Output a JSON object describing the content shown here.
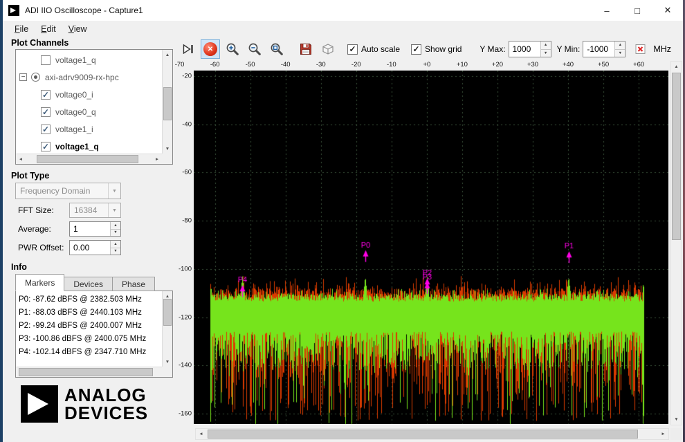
{
  "window": {
    "title": "ADI IIO Oscilloscope - Capture1",
    "buttons": {
      "minimize": "–",
      "maximize": "□",
      "close": "✕"
    }
  },
  "menu": {
    "items": [
      "File",
      "Edit",
      "View"
    ]
  },
  "icons": {
    "check": "✓",
    "dropdown_arrow": "▼",
    "spin_up": "▲",
    "spin_down": "▼",
    "scroll_up": "▲",
    "scroll_down": "▼",
    "scroll_left": "◄",
    "scroll_right": "►",
    "expander_collapse": "−",
    "stop_x": "✕"
  },
  "sidebar": {
    "plot_channels_label": "Plot Channels",
    "tree": [
      {
        "label": "voltage1_q",
        "checked": false
      },
      {
        "label": "axi-adrv9009-rx-hpc",
        "device": true
      },
      {
        "label": "voltage0_i",
        "checked": true
      },
      {
        "label": "voltage0_q",
        "checked": true
      },
      {
        "label": "voltage1_i",
        "checked": true
      },
      {
        "label": "voltage1_q",
        "checked": true,
        "emphasis": true
      }
    ],
    "plot_type_label": "Plot Type",
    "plot_type_value": "Frequency Domain",
    "fft_size_label": "FFT Size:",
    "fft_size_value": "16384",
    "average_label": "Average:",
    "average_value": "1",
    "pwr_offset_label": "PWR Offset:",
    "pwr_offset_value": "0.00",
    "info_label": "Info",
    "tabs": [
      "Markers",
      "Devices",
      "Phase"
    ],
    "marker_readouts": [
      "P0: -87.62 dBFS @ 2382.503 MHz",
      "P1: -88.03 dBFS @ 2440.103 MHz",
      "P2: -99.24 dBFS @ 2400.007 MHz",
      "P3: -100.86 dBFS @ 2400.075 MHz",
      "P4: -102.14 dBFS @ 2347.710 MHz"
    ],
    "logo_line1": "ANALOG",
    "logo_line2": "DEVICES"
  },
  "toolbar": {
    "auto_scale_label": "Auto scale",
    "auto_scale_checked": true,
    "show_grid_label": "Show grid",
    "show_grid_checked": true,
    "y_max_label": "Y Max:",
    "y_max_value": "1000",
    "y_min_label": "Y Min:",
    "y_min_value": "-1000",
    "unit_label": "MHz"
  },
  "chart_data": {
    "type": "line",
    "plot_type": "Frequency Domain FFT spectrum",
    "x_unit": "MHz (relative to 2400 MHz center)",
    "y_unit": "dBFS",
    "x_ticks": [
      "-70",
      "-60",
      "-50",
      "-40",
      "-30",
      "-20",
      "-10",
      "+0",
      "+10",
      "+20",
      "+30",
      "+40",
      "+50",
      "+60"
    ],
    "y_ticks": [
      -20,
      -40,
      -60,
      -80,
      -100,
      -120,
      -140,
      -160
    ],
    "x_range_mhz": [
      -66,
      68.4
    ],
    "y_range_dbfs": [
      -17.7,
      -164.3
    ],
    "center_freq_mhz": 2400,
    "signal_band_mhz": [
      -61.44,
      61.44
    ],
    "noise_floor_top_dbfs": -110.5,
    "noise_floor_bottom_dbfs": -130,
    "grid": true,
    "background": "#000000",
    "series_colors": {
      "primary": "#76e41c",
      "secondary": "#d93a00"
    },
    "marker_color": "#ff00e6",
    "markers": [
      {
        "id": "P0",
        "dbfs": -87.62,
        "freq_mhz": 2382.503
      },
      {
        "id": "P1",
        "dbfs": -88.03,
        "freq_mhz": 2440.103
      },
      {
        "id": "P2",
        "dbfs": -99.24,
        "freq_mhz": 2400.007
      },
      {
        "id": "P3",
        "dbfs": -100.86,
        "freq_mhz": 2400.075
      },
      {
        "id": "P4",
        "dbfs": -102.14,
        "freq_mhz": 2347.71
      }
    ]
  }
}
